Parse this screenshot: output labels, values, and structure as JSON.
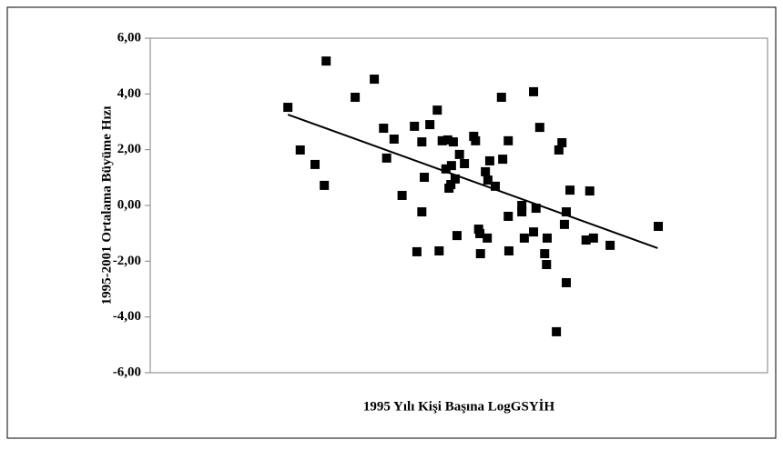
{
  "chart_data": {
    "type": "scatter",
    "y_label": "1995-2001 Ortalama Büyüme Hızı",
    "x_label": "1995 Yılı Kişi Başına LogGSYİH",
    "color": "#000000",
    "xlim": [
      0,
      100
    ],
    "ylim": [
      -6,
      6
    ],
    "yticks": [
      {
        "value": -6,
        "label": "-6,00"
      },
      {
        "value": -4,
        "label": "-4,00"
      },
      {
        "value": -2,
        "label": "-2,00"
      },
      {
        "value": 0,
        "label": "0,00"
      },
      {
        "value": 2,
        "label": "2,00"
      },
      {
        "value": 4,
        "label": "4,00"
      },
      {
        "value": 6,
        "label": "6,00"
      }
    ],
    "x": [
      22.3,
      24.3,
      26.7,
      28.2,
      28.5,
      33.2,
      36.3,
      37.8,
      38.3,
      39.5,
      40.8,
      42.8,
      43.2,
      44.0,
      44.0,
      44.4,
      45.3,
      46.5,
      46.8,
      47.3,
      47.9,
      48.2,
      48.4,
      48.7,
      48.8,
      49.1,
      49.4,
      49.7,
      50.1,
      50.9,
      52.4,
      52.7,
      53.2,
      53.4,
      53.5,
      54.3,
      54.6,
      54.7,
      55.0,
      55.9,
      56.9,
      57.1,
      58.0,
      58.0,
      58.1,
      60.2,
      60.2,
      60.6,
      62.1,
      62.1,
      62.5,
      63.1,
      63.9,
      64.2,
      64.3,
      65.8,
      66.2,
      66.7,
      67.1,
      67.4,
      67.4,
      68.0,
      70.6,
      71.2,
      71.8,
      74.5,
      82.3
    ],
    "values": [
      3.52,
      1.99,
      1.47,
      0.72,
      5.18,
      3.88,
      4.53,
      2.77,
      1.7,
      2.38,
      0.36,
      2.84,
      -1.66,
      -0.23,
      2.28,
      1.01,
      2.9,
      3.42,
      -1.63,
      2.32,
      1.31,
      2.35,
      0.62,
      0.75,
      1.43,
      2.28,
      0.95,
      -1.08,
      1.83,
      1.5,
      2.48,
      2.32,
      -0.85,
      -1.01,
      -1.73,
      1.21,
      -1.17,
      0.91,
      1.6,
      0.69,
      3.88,
      1.66,
      2.32,
      -0.39,
      -1.63,
      0.0,
      -0.23,
      -1.17,
      4.08,
      -0.95,
      -0.1,
      2.8,
      -1.73,
      -2.12,
      -1.17,
      -4.53,
      1.99,
      2.25,
      -0.68,
      -2.77,
      -0.23,
      0.55,
      -1.24,
      0.52,
      -1.17,
      -1.43,
      -0.75
    ],
    "trendline": {
      "x": [
        22.3,
        82.2
      ],
      "values": [
        3.26,
        -1.53
      ]
    }
  }
}
